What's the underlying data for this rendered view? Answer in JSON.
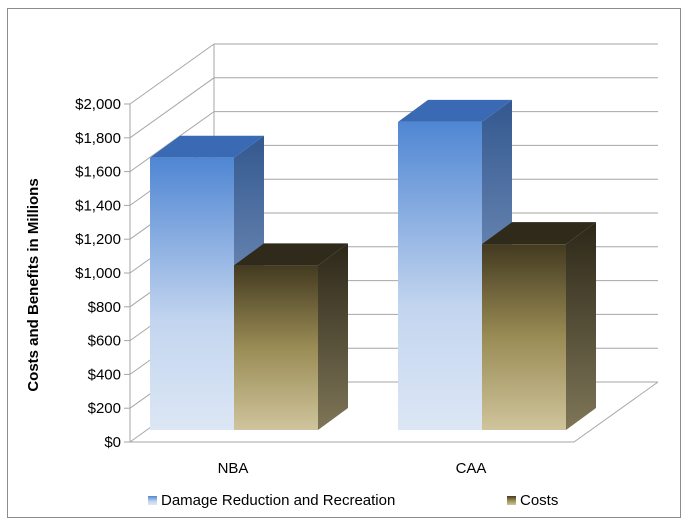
{
  "chart_data": {
    "type": "bar",
    "title": "",
    "xlabel": "",
    "ylabel": "Costs and Benefits in Millions",
    "ylim": [
      0,
      2000
    ],
    "y_ticks": [
      0,
      200,
      400,
      600,
      800,
      1000,
      1200,
      1400,
      1600,
      1800,
      2000
    ],
    "y_tick_labels": [
      "$0",
      "$200",
      "$400",
      "$600",
      "$800",
      "$1,000",
      "$1,200",
      "$1,400",
      "$1,600",
      "$1,800",
      "$2,000"
    ],
    "categories": [
      "NBA",
      "CAA"
    ],
    "series": [
      {
        "name": "Damage Reduction and Recreation",
        "values": [
          1670,
          1890
        ]
      },
      {
        "name": "Costs",
        "values": [
          1010,
          1140
        ]
      }
    ],
    "grid": true,
    "legend_position": "bottom",
    "three_d": true,
    "colors": {
      "benefit_top": "#4f86d3",
      "benefit_bottom": "#dce7f5",
      "benefit_side": "#3b64a3",
      "benefit_cap": "#3a6ab4",
      "cost_top": "#4a4125",
      "cost_bottom": "#c9bd93",
      "cost_side": "#3a3320",
      "cost_cap": "#2f2a1a",
      "grid": "#a6a6a6"
    }
  }
}
